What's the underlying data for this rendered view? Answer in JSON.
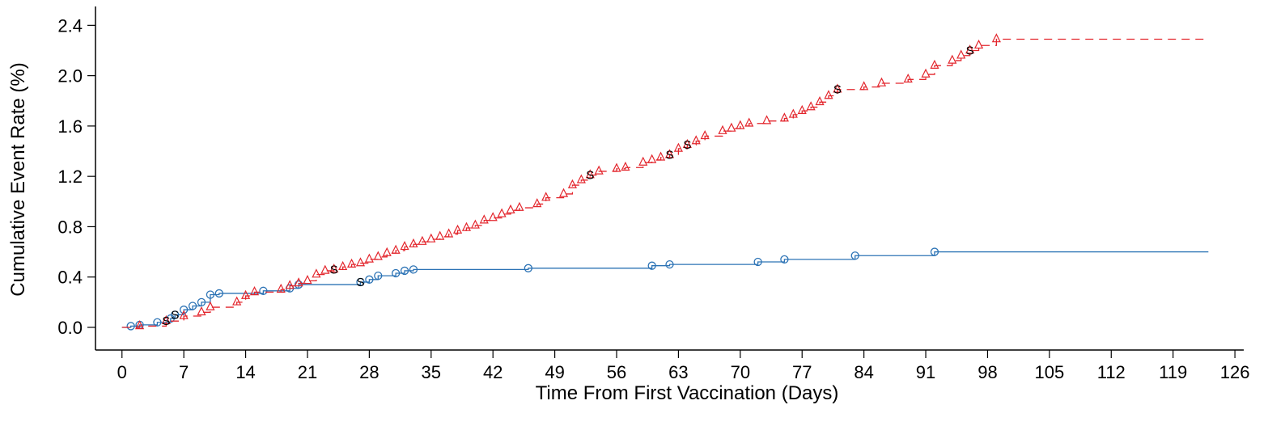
{
  "chart_data": {
    "type": "line",
    "title": "",
    "xlabel": "Time From First Vaccination (Days)",
    "ylabel": "Cumulative Event Rate (%)",
    "xlim": [
      -3,
      127
    ],
    "ylim": [
      -0.18,
      2.55
    ],
    "xticks": [
      0,
      7,
      14,
      21,
      28,
      35,
      42,
      49,
      56,
      63,
      70,
      77,
      84,
      91,
      98,
      105,
      112,
      119,
      126
    ],
    "xtick_labels": [
      "0",
      "7",
      "14",
      "21",
      "28",
      "35",
      "42",
      "49",
      "56",
      "63",
      "70",
      "77",
      "84",
      "91",
      "98",
      "105",
      "112",
      "119",
      "126"
    ],
    "yticks": [
      0.0,
      0.4,
      0.8,
      1.2,
      1.6,
      2.0,
      2.4
    ],
    "ytick_labels": [
      "0.0",
      "0.4",
      "0.8",
      "1.2",
      "1.6",
      "2.0",
      "2.4"
    ],
    "grid": false,
    "legend": "none",
    "series": [
      {
        "style": "solid",
        "marker": "circle",
        "color": "#2c73b5",
        "extends_to_x": 123,
        "points": [
          [
            0,
            0.0
          ],
          [
            1,
            0.01
          ],
          [
            2,
            0.02
          ],
          [
            4,
            0.04
          ],
          [
            5.5,
            0.07
          ],
          [
            6,
            0.1
          ],
          [
            7,
            0.14
          ],
          [
            8,
            0.17
          ],
          [
            9,
            0.2
          ],
          [
            10,
            0.26
          ],
          [
            11,
            0.27
          ],
          [
            16,
            0.29
          ],
          [
            19,
            0.31
          ],
          [
            20,
            0.34
          ],
          [
            27,
            0.36
          ],
          [
            28,
            0.38
          ],
          [
            29,
            0.41
          ],
          [
            31,
            0.43
          ],
          [
            32,
            0.45
          ],
          [
            33,
            0.46
          ],
          [
            46,
            0.47
          ],
          [
            60,
            0.49
          ],
          [
            62,
            0.5
          ],
          [
            72,
            0.52
          ],
          [
            75,
            0.54
          ],
          [
            83,
            0.57
          ],
          [
            92,
            0.6
          ]
        ],
        "s_marks": [
          [
            6,
            0.1
          ],
          [
            27,
            0.36
          ]
        ]
      },
      {
        "style": "dashed",
        "marker": "triangle",
        "color": "#e3262d",
        "extends_to_x": 123,
        "points": [
          [
            0,
            0.0
          ],
          [
            2,
            0.01
          ],
          [
            5,
            0.05
          ],
          [
            7,
            0.09
          ],
          [
            9,
            0.12
          ],
          [
            10,
            0.16
          ],
          [
            13,
            0.2
          ],
          [
            14,
            0.25
          ],
          [
            15,
            0.28
          ],
          [
            18,
            0.3
          ],
          [
            19,
            0.33
          ],
          [
            20,
            0.35
          ],
          [
            21,
            0.37
          ],
          [
            22,
            0.42
          ],
          [
            23,
            0.45
          ],
          [
            24,
            0.46
          ],
          [
            25,
            0.48
          ],
          [
            26,
            0.5
          ],
          [
            27,
            0.51
          ],
          [
            28,
            0.54
          ],
          [
            29,
            0.56
          ],
          [
            30,
            0.59
          ],
          [
            31,
            0.61
          ],
          [
            32,
            0.64
          ],
          [
            33,
            0.66
          ],
          [
            34,
            0.68
          ],
          [
            35,
            0.7
          ],
          [
            36,
            0.72
          ],
          [
            37,
            0.74
          ],
          [
            38,
            0.77
          ],
          [
            39,
            0.79
          ],
          [
            40,
            0.81
          ],
          [
            41,
            0.85
          ],
          [
            42,
            0.87
          ],
          [
            43,
            0.9
          ],
          [
            44,
            0.93
          ],
          [
            45,
            0.95
          ],
          [
            47,
            0.98
          ],
          [
            48,
            1.03
          ],
          [
            50,
            1.06
          ],
          [
            51,
            1.13
          ],
          [
            52,
            1.17
          ],
          [
            53,
            1.21
          ],
          [
            54,
            1.24
          ],
          [
            56,
            1.26
          ],
          [
            57,
            1.27
          ],
          [
            59,
            1.31
          ],
          [
            60,
            1.33
          ],
          [
            61,
            1.35
          ],
          [
            62,
            1.37
          ],
          [
            63,
            1.42
          ],
          [
            64,
            1.45
          ],
          [
            65,
            1.48
          ],
          [
            66,
            1.52
          ],
          [
            68,
            1.56
          ],
          [
            69,
            1.58
          ],
          [
            70,
            1.6
          ],
          [
            71,
            1.62
          ],
          [
            73,
            1.64
          ],
          [
            75,
            1.66
          ],
          [
            76,
            1.69
          ],
          [
            77,
            1.72
          ],
          [
            78,
            1.75
          ],
          [
            79,
            1.79
          ],
          [
            80,
            1.84
          ],
          [
            81,
            1.89
          ],
          [
            84,
            1.91
          ],
          [
            86,
            1.94
          ],
          [
            89,
            1.97
          ],
          [
            91,
            2.01
          ],
          [
            92,
            2.08
          ],
          [
            94,
            2.12
          ],
          [
            95,
            2.16
          ],
          [
            96,
            2.2
          ],
          [
            97,
            2.24
          ],
          [
            99,
            2.29
          ]
        ],
        "s_marks": [
          [
            5,
            0.05
          ],
          [
            24,
            0.46
          ],
          [
            53,
            1.21
          ],
          [
            62,
            1.37
          ],
          [
            64,
            1.45
          ],
          [
            81,
            1.89
          ],
          [
            96,
            2.2
          ]
        ]
      }
    ]
  }
}
